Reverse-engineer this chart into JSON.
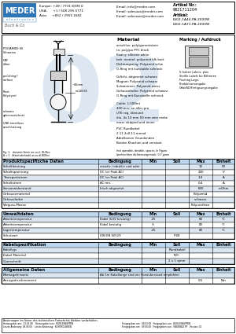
{
  "title_article_no": "Artikel Nr.:",
  "article_no_val": "9821711204",
  "title_artikel": "Artikel:",
  "artikel_val1": "LS02-1A44-PA-2000W",
  "artikel_val2": "LS02-1A71-PA-2000W",
  "company": "MEDER",
  "company_sub": "e l e c t r o n i c s",
  "contact_eu": "Europe: +49 / 7731 8399 0",
  "contact_usa": "USA:      +1 / 508 295 0771",
  "contact_asia": "Asia:     +852 / 2955 1682",
  "email_info": "Email: info@meder.com",
  "email_sales": "Email: salesusa@meder.com",
  "email_salesasia": "Email: salesasia@meder.com",
  "watermark_text": "02",
  "section1_title": "Produktspezifische Daten",
  "section2_title": "Umweltdaten",
  "section3_title": "Kabelspezifikation",
  "section4_title": "Allgemeine Daten",
  "footer_text1": "Anderungen im Sinne des technischen Fortschritts bleiben vorbehalten",
  "footer_line1": "Herausgeber am:  23.01.08    Herausgeber von:  BURLESNGPPEN     Freigegeben am:  08.03.08   Freigegeben von:  BURLESNGPPEN",
  "footer_line2": "Letzte Anderung: 09.06.00    Letzte Anderung:  KONTROLIEREN     Freigegeben am:  09.06.00   Freigegeben von:  SNDRINLD PP      Version:  04",
  "bg_color": "#ffffff",
  "header_blue": "#bdd7ee",
  "row_alt": "#dce6f1",
  "row_white": "#ffffff"
}
